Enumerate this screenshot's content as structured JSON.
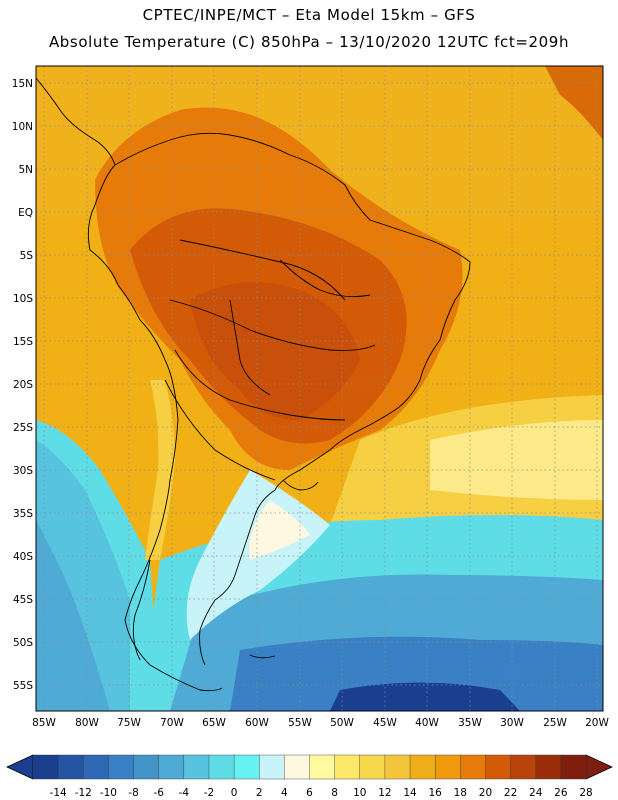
{
  "header": {
    "title_line1": "CPTEC/INPE/MCT –  Eta Model 15km – GFS",
    "title_line2": "Absolute Temperature (C) 850hPa – 13/10/2020 12UTC fct=209h"
  },
  "map": {
    "lat_labels": [
      "15N",
      "10N",
      "5N",
      "EQ",
      "5S",
      "10S",
      "15S",
      "20S",
      "25S",
      "30S",
      "35S",
      "40S",
      "45S",
      "50S",
      "55S"
    ],
    "lon_labels": [
      "85W",
      "80W",
      "75W",
      "70W",
      "65W",
      "60W",
      "55W",
      "50W",
      "45W",
      "40W",
      "35W",
      "30W",
      "25W",
      "20W"
    ]
  },
  "colorbar": {
    "labels": [
      "-14",
      "-12",
      "-10",
      "-8",
      "-6",
      "-4",
      "-2",
      "0",
      "2",
      "4",
      "6",
      "8",
      "10",
      "12",
      "14",
      "16",
      "18",
      "20",
      "22",
      "24",
      "26",
      "28"
    ],
    "colors": [
      "#1a3f8f",
      "#2554a3",
      "#2e67b3",
      "#3a80c4",
      "#4395c8",
      "#4fabd6",
      "#57c3de",
      "#5fdde6",
      "#67f2f2",
      "#c8f3f8",
      "#fff8e0",
      "#fff9a0",
      "#fce96a",
      "#f8d84c",
      "#f4c43a",
      "#f0ad1a",
      "#ef9b0c",
      "#e67b0a",
      "#d35a07",
      "#b8430a",
      "#992d0a",
      "#7e1e0e"
    ]
  }
}
